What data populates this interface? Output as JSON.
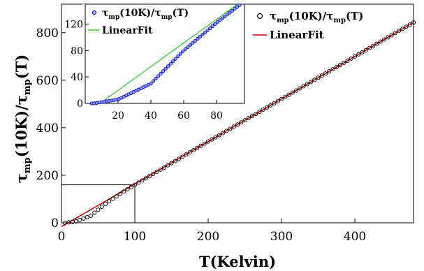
{
  "chart_data": [
    {
      "type": "scatter",
      "xlabel": "T(Kelvin)",
      "ylabel": "τmp(10K)/τmp(T)",
      "ylabel_parts": {
        "sym": "τ",
        "sub": "mp",
        "mid": "(10K)/",
        "sym2": "τ",
        "sub2": "mp",
        "end": "(T)"
      },
      "xlim": [
        0,
        480
      ],
      "ylim": [
        0,
        920
      ],
      "x_ticks": [
        {
          "value": 0,
          "label": "0"
        },
        {
          "value": 100,
          "label": "100"
        },
        {
          "value": 200,
          "label": "200"
        },
        {
          "value": 300,
          "label": "300"
        },
        {
          "value": 400,
          "label": "400"
        }
      ],
      "y_ticks": [
        {
          "value": 0,
          "label": "0"
        },
        {
          "value": 200,
          "label": "200"
        },
        {
          "value": 400,
          "label": "400"
        },
        {
          "value": 600,
          "label": "600"
        },
        {
          "value": 800,
          "label": "800"
        }
      ],
      "grid": false,
      "legend_position": "top-right",
      "guide_point": {
        "x": 100,
        "y": 160
      },
      "series": [
        {
          "name": "τmp(10K)/τmp(T)",
          "name_parts": {
            "sym": "τ",
            "sub": "mp",
            "mid": "(10K)/",
            "sym2": "τ",
            "sub2": "mp",
            "end": "(T)"
          },
          "marker": "circle",
          "color": "#000000",
          "x_start": 5,
          "x_end": 480,
          "x_step": 5,
          "curve": "piecewise",
          "note_values": [
            [
              5,
              0
            ],
            [
              20,
              6
            ],
            [
              40,
              30
            ],
            [
              60,
              80
            ],
            [
              80,
              122
            ],
            [
              100,
              160
            ],
            [
              200,
              342
            ],
            [
              300,
              521
            ],
            [
              400,
              700
            ],
            [
              480,
              843
            ]
          ]
        },
        {
          "name": "LinearFit",
          "type": "line",
          "color": "#cc0000",
          "slope": 1.79,
          "intercept": -16
        }
      ]
    },
    {
      "type": "scatter",
      "position": "inset",
      "xlim": [
        0,
        97
      ],
      "ylim": [
        0,
        150
      ],
      "x_ticks": [
        {
          "value": 20,
          "label": "20"
        },
        {
          "value": 40,
          "label": "40"
        },
        {
          "value": 60,
          "label": "60"
        },
        {
          "value": 80,
          "label": "80"
        }
      ],
      "y_ticks": [
        {
          "value": 0,
          "label": "0"
        },
        {
          "value": 40,
          "label": "40"
        },
        {
          "value": 80,
          "label": "80"
        },
        {
          "value": 120,
          "label": "120"
        }
      ],
      "legend_position": "top-left",
      "series": [
        {
          "name": "τmp(10K)/τmp(T)",
          "name_parts": {
            "sym": "τ",
            "sub": "mp",
            "mid": "(10K)/",
            "sym2": "τ",
            "sub2": "mp",
            "end": "(T)"
          },
          "marker": "circle",
          "color": "#0000cc",
          "x_start": 4,
          "x_end": 97,
          "x_step": 1.5
        },
        {
          "name": "LinearFit",
          "type": "line",
          "color": "#33cc33",
          "slope": 1.79,
          "intercept": -16
        }
      ]
    }
  ]
}
